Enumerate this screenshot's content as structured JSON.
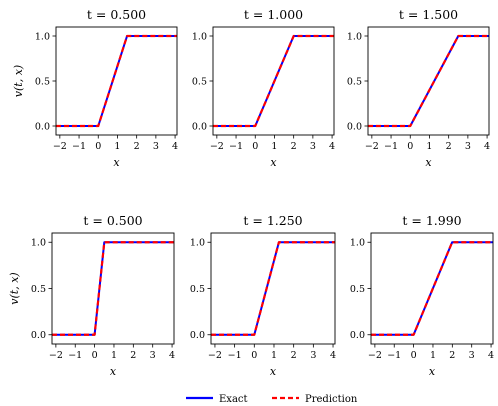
{
  "chart_data": [
    {
      "type": "line",
      "title": "t = 0.500",
      "xlabel": "x",
      "ylabel": "v(t, x)",
      "xlim": [
        -2.2,
        4.1
      ],
      "ylim": [
        -0.1,
        1.1
      ],
      "xticks": [
        "−2",
        "−1",
        "0",
        "1",
        "2",
        "3",
        "4"
      ],
      "yticks": [
        "0.0",
        "0.5",
        "1.0"
      ],
      "series": [
        {
          "name": "Exact",
          "color": "#0000ff",
          "style": "solid",
          "x": [
            -2.2,
            0,
            1.5,
            4.1
          ],
          "y": [
            0,
            0,
            1,
            1
          ]
        },
        {
          "name": "Prediction",
          "color": "#ff0000",
          "style": "dashed",
          "x": [
            -2.2,
            0,
            1.5,
            4.1
          ],
          "y": [
            0,
            0,
            1,
            1
          ]
        }
      ]
    },
    {
      "type": "line",
      "title": "t = 1.000",
      "xlabel": "x",
      "ylabel": "",
      "xlim": [
        -2.2,
        4.1
      ],
      "ylim": [
        -0.1,
        1.1
      ],
      "xticks": [
        "−2",
        "−1",
        "0",
        "1",
        "2",
        "3",
        "4"
      ],
      "yticks": [
        "0.0",
        "0.5",
        "1.0"
      ],
      "series": [
        {
          "name": "Exact",
          "color": "#0000ff",
          "style": "solid",
          "x": [
            -2.2,
            0,
            2.0,
            4.1
          ],
          "y": [
            0,
            0,
            1,
            1
          ]
        },
        {
          "name": "Prediction",
          "color": "#ff0000",
          "style": "dashed",
          "x": [
            -2.2,
            0,
            2.0,
            4.1
          ],
          "y": [
            0,
            0,
            1,
            1
          ]
        }
      ]
    },
    {
      "type": "line",
      "title": "t = 1.500",
      "xlabel": "x",
      "ylabel": "",
      "xlim": [
        -2.2,
        4.1
      ],
      "ylim": [
        -0.1,
        1.1
      ],
      "xticks": [
        "−2",
        "−1",
        "0",
        "1",
        "2",
        "3",
        "4"
      ],
      "yticks": [
        "0.0",
        "0.5",
        "1.0"
      ],
      "series": [
        {
          "name": "Exact",
          "color": "#0000ff",
          "style": "solid",
          "x": [
            -2.2,
            0,
            2.5,
            4.1
          ],
          "y": [
            0,
            0,
            1,
            1
          ]
        },
        {
          "name": "Prediction",
          "color": "#ff0000",
          "style": "dashed",
          "x": [
            -2.2,
            0,
            2.5,
            4.1
          ],
          "y": [
            0,
            0,
            1,
            1
          ]
        }
      ]
    },
    {
      "type": "line",
      "title": "t = 0.500",
      "xlabel": "x",
      "ylabel": "v(t, x)",
      "xlim": [
        -2.2,
        4.1
      ],
      "ylim": [
        -0.1,
        1.1
      ],
      "xticks": [
        "−2",
        "−1",
        "0",
        "1",
        "2",
        "3",
        "4"
      ],
      "yticks": [
        "0.0",
        "0.5",
        "1.0"
      ],
      "series": [
        {
          "name": "Exact",
          "color": "#0000ff",
          "style": "solid",
          "x": [
            -2.2,
            0,
            0.5,
            4.1
          ],
          "y": [
            0,
            0,
            1,
            1
          ]
        },
        {
          "name": "Prediction",
          "color": "#ff0000",
          "style": "dashed",
          "x": [
            -2.2,
            0,
            0.5,
            4.1
          ],
          "y": [
            0,
            0,
            1,
            1
          ]
        }
      ]
    },
    {
      "type": "line",
      "title": "t = 1.250",
      "xlabel": "x",
      "ylabel": "",
      "xlim": [
        -2.2,
        4.1
      ],
      "ylim": [
        -0.1,
        1.1
      ],
      "xticks": [
        "−2",
        "−1",
        "0",
        "1",
        "2",
        "3",
        "4"
      ],
      "yticks": [
        "0.0",
        "0.5",
        "1.0"
      ],
      "series": [
        {
          "name": "Exact",
          "color": "#0000ff",
          "style": "solid",
          "x": [
            -2.2,
            0,
            1.25,
            4.1
          ],
          "y": [
            0,
            0,
            1,
            1
          ]
        },
        {
          "name": "Prediction",
          "color": "#ff0000",
          "style": "dashed",
          "x": [
            -2.2,
            0,
            1.25,
            4.1
          ],
          "y": [
            0,
            0,
            1,
            1
          ]
        }
      ]
    },
    {
      "type": "line",
      "title": "t = 1.990",
      "xlabel": "x",
      "ylabel": "",
      "xlim": [
        -2.2,
        4.1
      ],
      "ylim": [
        -0.1,
        1.1
      ],
      "xticks": [
        "−2",
        "−1",
        "0",
        "1",
        "2",
        "3",
        "4"
      ],
      "yticks": [
        "0.0",
        "0.5",
        "1.0"
      ],
      "series": [
        {
          "name": "Exact",
          "color": "#0000ff",
          "style": "solid",
          "x": [
            -2.2,
            0,
            1.99,
            4.1
          ],
          "y": [
            0,
            0,
            1,
            1
          ]
        },
        {
          "name": "Prediction",
          "color": "#ff0000",
          "style": "dashed",
          "x": [
            -2.2,
            0,
            1.99,
            4.1
          ],
          "y": [
            0,
            0,
            1,
            1
          ]
        }
      ]
    }
  ],
  "legend": {
    "placement": "bottom-center",
    "entries": [
      {
        "label": "Exact",
        "color": "#0000ff",
        "style": "solid"
      },
      {
        "label": "Prediction",
        "color": "#ff0000",
        "style": "dashed"
      }
    ]
  }
}
